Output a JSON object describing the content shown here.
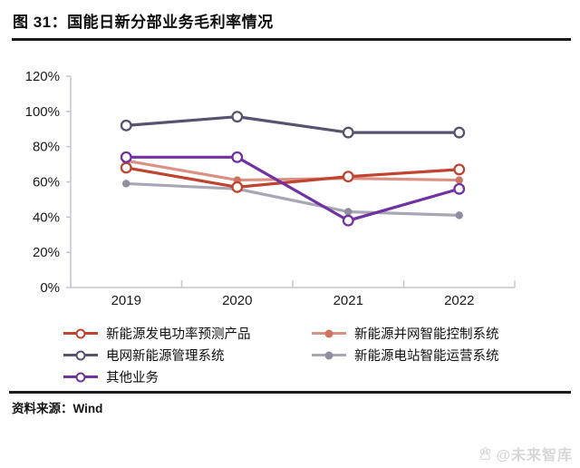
{
  "header": {
    "title": "图 31：国能日新分部业务毛利率情况"
  },
  "source": {
    "text": "资料来源：Wind"
  },
  "watermark": {
    "text": "@未来智库"
  },
  "chart_data": {
    "type": "line",
    "title": "国能日新分部业务毛利率情况",
    "categories": [
      "2019",
      "2020",
      "2021",
      "2022"
    ],
    "unit": "%",
    "ylim": [
      0,
      120
    ],
    "ytick_step": 20,
    "ytick_labels": [
      "0%",
      "20%",
      "40%",
      "60%",
      "80%",
      "100%",
      "120%"
    ],
    "grid": false,
    "legend_position": "bottom",
    "axis_color": "#c6c4ce",
    "tick_label_color": "#1a1a1a",
    "series": [
      {
        "name": "新能源发电功率预测产品",
        "values": [
          68,
          57,
          63,
          67
        ],
        "color": "#C0432F",
        "marker": "open-circle"
      },
      {
        "name": "新能源并网智能控制系统",
        "values": [
          72,
          61,
          62,
          61
        ],
        "color": "#DB9084",
        "dot_color": "#CE7362",
        "marker": "filled-circle"
      },
      {
        "name": "电网新能源管理系统",
        "values": [
          92,
          97,
          88,
          88
        ],
        "color": "#55536E",
        "marker": "open-circle"
      },
      {
        "name": "新能源电站智能运营系统",
        "values": [
          59,
          56,
          43,
          41
        ],
        "color": "#A9A7B4",
        "dot_color": "#8F8D9F",
        "marker": "filled-circle"
      },
      {
        "name": "其他业务",
        "values": [
          74,
          74,
          38,
          56
        ],
        "color": "#7031A1",
        "marker": "open-circle"
      }
    ],
    "draw_order": [
      1,
      3,
      0,
      2,
      4
    ]
  }
}
